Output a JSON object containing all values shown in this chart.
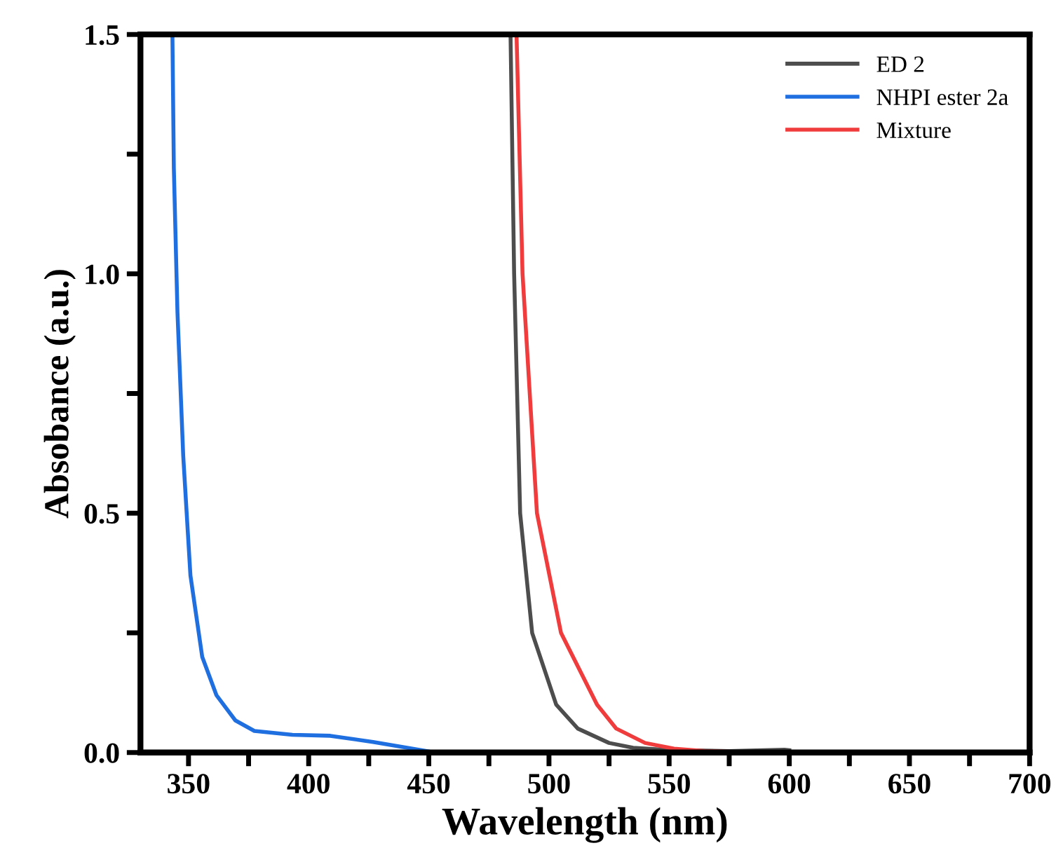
{
  "chart_data": {
    "type": "line",
    "xlabel": "Wavelength (nm)",
    "ylabel": "Absobance (a.u.)",
    "xlim": [
      330,
      700
    ],
    "ylim": [
      0,
      1.5
    ],
    "xticks": [
      350,
      {
        "value": 375,
        "label": null
      },
      400,
      {
        "value": 425,
        "label": null
      },
      450,
      {
        "value": 475,
        "label": null
      },
      500,
      {
        "value": 525,
        "label": null
      },
      550,
      {
        "value": 575,
        "label": null
      },
      600,
      {
        "value": 625,
        "label": null
      },
      650,
      {
        "value": 675,
        "label": null
      },
      700
    ],
    "yticks": [
      {
        "value": 0,
        "label": "0.0"
      },
      {
        "value": 0.25,
        "label": null
      },
      {
        "value": 0.5,
        "label": "0.5"
      },
      {
        "value": 0.75,
        "label": null
      },
      {
        "value": 1.0,
        "label": "1.0"
      },
      {
        "value": 1.25,
        "label": null
      },
      {
        "value": 1.5,
        "label": "1.5"
      }
    ],
    "legend": "top right",
    "grid": false,
    "series": [
      {
        "name": "ED 2",
        "color": "#4d4d4d",
        "x": [
          484,
          485.5,
          488,
          493,
          503,
          512,
          525,
          535,
          550,
          575,
          598,
          600
        ],
        "values": [
          1.5,
          1.0,
          0.5,
          0.25,
          0.1,
          0.05,
          0.02,
          0.01,
          0.005,
          0.003,
          0.006,
          0.005
        ]
      },
      {
        "name": "NHPI ester 2a",
        "color": "#1f6fe0",
        "x": [
          343.3,
          343.9,
          345.4,
          347.8,
          350.8,
          355.7,
          361.6,
          369.5,
          377.4,
          393.2,
          409,
          426.8,
          450.4,
          456.5
        ],
        "values": [
          1.5,
          1.22,
          0.92,
          0.62,
          0.37,
          0.2,
          0.12,
          0.067,
          0.045,
          0.037,
          0.035,
          0.022,
          0.002,
          0
        ]
      },
      {
        "name": "Mixture",
        "color": "#f03c3c",
        "x": [
          486.5,
          489,
          495,
          505,
          520,
          528,
          540,
          552,
          565,
          580
        ],
        "values": [
          1.5,
          1.0,
          0.5,
          0.25,
          0.1,
          0.05,
          0.02,
          0.008,
          0.003,
          0.001
        ]
      }
    ]
  }
}
